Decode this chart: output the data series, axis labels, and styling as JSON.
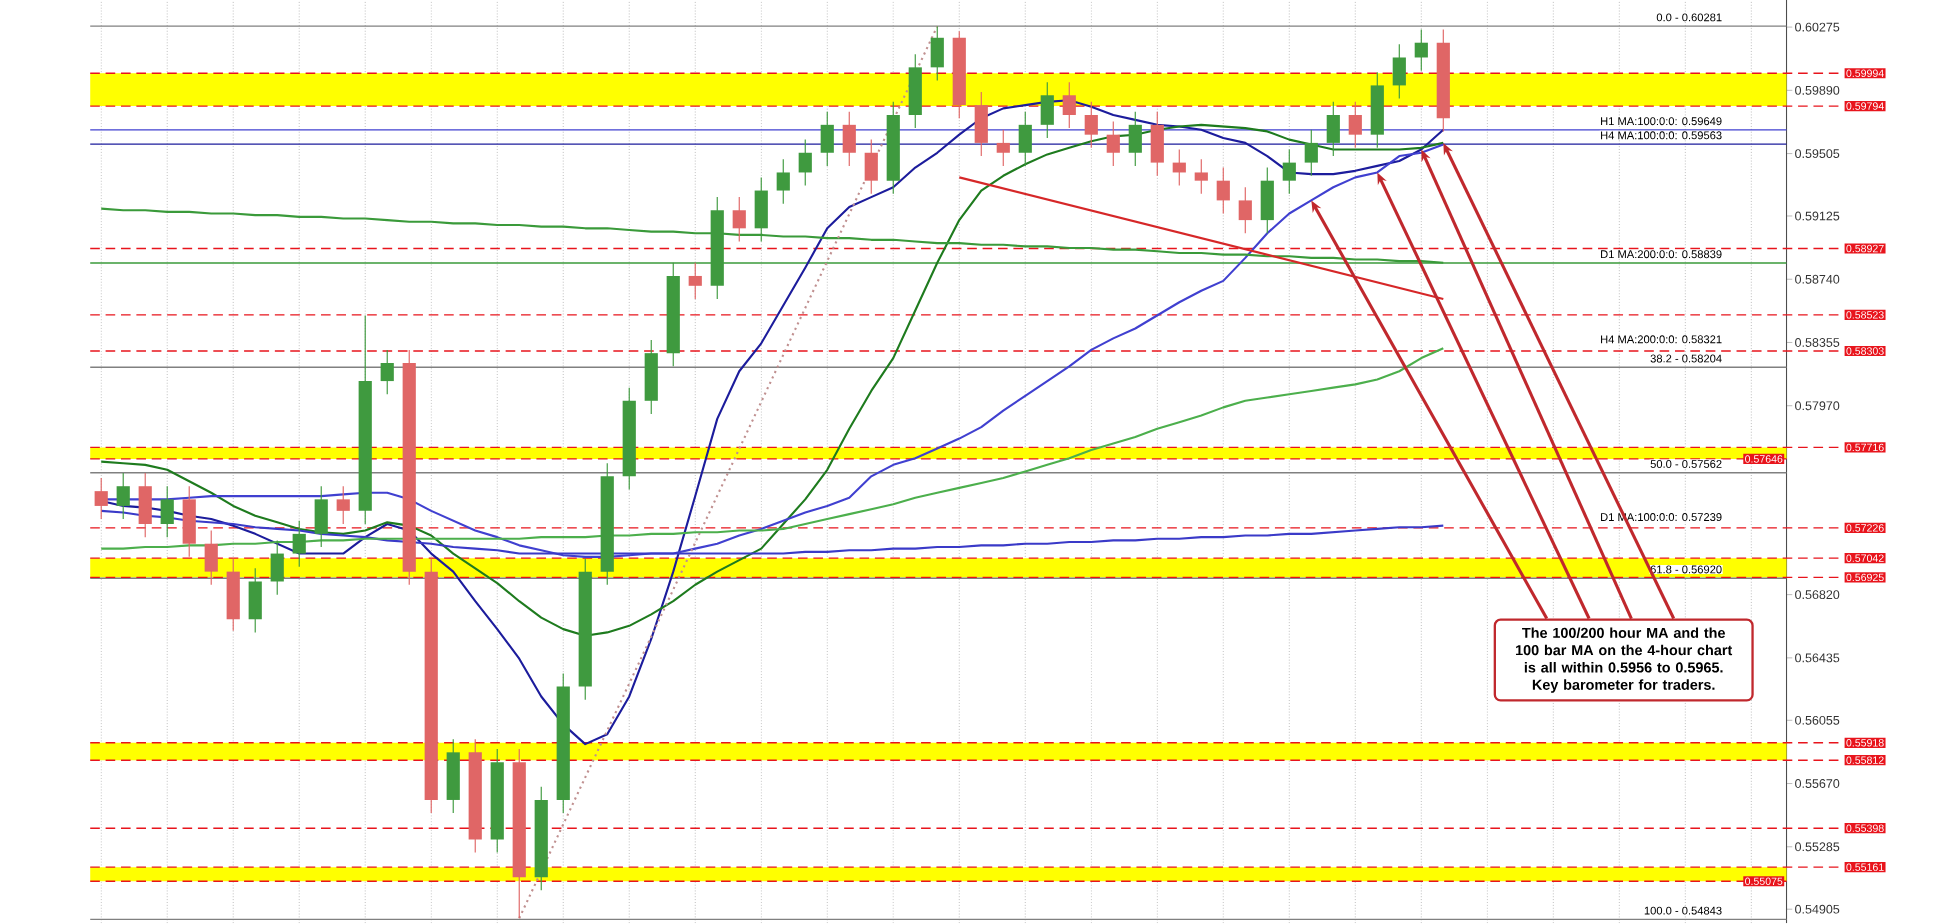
{
  "chart_data": {
    "type": "candlestick",
    "categories": [
      null,
      null,
      null,
      null,
      null,
      null,
      null,
      null,
      null,
      null,
      null,
      null,
      null,
      null,
      null,
      null,
      null,
      null,
      null,
      null,
      null,
      null,
      null,
      null,
      null,
      null,
      null,
      null,
      null,
      null,
      null,
      null,
      null,
      null,
      null,
      null,
      null,
      null,
      null,
      null,
      null,
      null,
      null,
      null,
      null,
      null,
      null,
      null,
      null,
      null,
      null,
      null,
      null,
      null,
      null,
      null,
      null,
      null,
      null,
      null,
      null,
      null
    ],
    "ohlc": [
      [
        0.5745,
        0.5753,
        0.5728,
        0.5736
      ],
      [
        0.5736,
        0.5756,
        0.5728,
        0.5748
      ],
      [
        0.5748,
        0.5756,
        0.5717,
        0.5725
      ],
      [
        0.5725,
        0.5748,
        0.5717,
        0.574
      ],
      [
        0.574,
        0.5748,
        0.5705,
        0.5713
      ],
      [
        0.5713,
        0.5721,
        0.5688,
        0.5696
      ],
      [
        0.5696,
        0.5704,
        0.566,
        0.5667
      ],
      [
        0.5667,
        0.5698,
        0.5659,
        0.569
      ],
      [
        0.569,
        0.5715,
        0.5682,
        0.5707
      ],
      [
        0.5707,
        0.5727,
        0.5699,
        0.5719
      ],
      [
        0.5719,
        0.5748,
        0.5711,
        0.574
      ],
      [
        0.574,
        0.5748,
        0.5725,
        0.5733
      ],
      [
        0.5733,
        0.5852,
        0.5725,
        0.5812
      ],
      [
        0.5812,
        0.5831,
        0.5804,
        0.5823
      ],
      [
        0.5823,
        0.5831,
        0.5688,
        0.5696
      ],
      [
        0.5696,
        0.5704,
        0.5549,
        0.5557
      ],
      [
        0.5557,
        0.5594,
        0.5549,
        0.5586
      ],
      [
        0.5586,
        0.5594,
        0.5525,
        0.5533
      ],
      [
        0.5533,
        0.5588,
        0.5525,
        0.558
      ],
      [
        0.558,
        0.5588,
        0.5485,
        0.551
      ],
      [
        0.551,
        0.5565,
        0.5502,
        0.5557
      ],
      [
        0.5557,
        0.5634,
        0.5549,
        0.5626
      ],
      [
        0.5626,
        0.5704,
        0.5618,
        0.5696
      ],
      [
        0.5696,
        0.5762,
        0.5688,
        0.5754
      ],
      [
        0.5754,
        0.5808,
        0.5746,
        0.58
      ],
      [
        0.58,
        0.5837,
        0.5792,
        0.5829
      ],
      [
        0.5829,
        0.5884,
        0.5821,
        0.5876
      ],
      [
        0.5876,
        0.5884,
        0.5862,
        0.587
      ],
      [
        0.587,
        0.5924,
        0.5862,
        0.5916
      ],
      [
        0.5916,
        0.5924,
        0.5897,
        0.5905
      ],
      [
        0.5905,
        0.5936,
        0.5897,
        0.5928
      ],
      [
        0.5928,
        0.5947,
        0.592,
        0.5939
      ],
      [
        0.5939,
        0.5959,
        0.5931,
        0.5951
      ],
      [
        0.5951,
        0.5976,
        0.5943,
        0.5968
      ],
      [
        0.5968,
        0.5976,
        0.5943,
        0.5951
      ],
      [
        0.5951,
        0.5959,
        0.5926,
        0.5934
      ],
      [
        0.5934,
        0.5982,
        0.5926,
        0.5974
      ],
      [
        0.5974,
        0.6011,
        0.5966,
        0.6003
      ],
      [
        0.6003,
        0.6028,
        0.5995,
        0.6021
      ],
      [
        0.6021,
        0.6025,
        0.5972,
        0.598
      ],
      [
        0.598,
        0.5988,
        0.5949,
        0.5957
      ],
      [
        0.5957,
        0.5965,
        0.5943,
        0.5951
      ],
      [
        0.5951,
        0.5976,
        0.5943,
        0.5968
      ],
      [
        0.5968,
        0.5994,
        0.596,
        0.5986
      ],
      [
        0.5986,
        0.5994,
        0.5966,
        0.5974
      ],
      [
        0.5974,
        0.5982,
        0.5954,
        0.5962
      ],
      [
        0.5962,
        0.597,
        0.5943,
        0.5951
      ],
      [
        0.5951,
        0.5976,
        0.5943,
        0.5968
      ],
      [
        0.5968,
        0.5976,
        0.5937,
        0.5945
      ],
      [
        0.5945,
        0.5953,
        0.5931,
        0.5939
      ],
      [
        0.5939,
        0.5947,
        0.5926,
        0.5934
      ],
      [
        0.5934,
        0.5942,
        0.5914,
        0.5922
      ],
      [
        0.5922,
        0.593,
        0.5902,
        0.591
      ],
      [
        0.591,
        0.5942,
        0.5902,
        0.5934
      ],
      [
        0.5934,
        0.5953,
        0.5926,
        0.5945
      ],
      [
        0.5945,
        0.5965,
        0.5937,
        0.5957
      ],
      [
        0.5957,
        0.5982,
        0.5949,
        0.5974
      ],
      [
        0.5974,
        0.5982,
        0.5954,
        0.5962
      ],
      [
        0.5962,
        0.6,
        0.5954,
        0.5992
      ],
      [
        0.5992,
        0.6017,
        0.5984,
        0.6009
      ],
      [
        0.6009,
        0.6026,
        0.6001,
        0.6018
      ],
      [
        0.6018,
        0.6026,
        0.5964,
        0.5972
      ]
    ],
    "colors": [
      "#e06666",
      "#3f9a3f",
      "#e06666",
      "#3f9a3f",
      "#e06666",
      "#e06666",
      "#e06666",
      "#3f9a3f",
      "#3f9a3f",
      "#3f9a3f",
      "#3f9a3f",
      "#e06666",
      "#3f9a3f",
      "#3f9a3f",
      "#e06666",
      "#e06666",
      "#3f9a3f",
      "#e06666",
      "#3f9a3f",
      "#e06666",
      "#3f9a3f",
      "#3f9a3f",
      "#3f9a3f",
      "#3f9a3f",
      "#3f9a3f",
      "#3f9a3f",
      "#3f9a3f",
      "#e06666",
      "#3f9a3f",
      "#e06666",
      "#3f9a3f",
      "#3f9a3f",
      "#3f9a3f",
      "#3f9a3f",
      "#e06666",
      "#e06666",
      "#3f9a3f",
      "#3f9a3f",
      "#3f9a3f",
      "#e06666",
      "#e06666",
      "#e06666",
      "#3f9a3f",
      "#3f9a3f",
      "#e06666",
      "#e06666",
      "#e06666",
      "#3f9a3f",
      "#e06666",
      "#e06666",
      "#e06666",
      "#e06666",
      "#e06666",
      "#3f9a3f",
      "#3f9a3f",
      "#3f9a3f",
      "#3f9a3f",
      "#e06666",
      "#3f9a3f",
      "#3f9a3f",
      "#3f9a3f",
      "#e06666"
    ],
    "series": [
      {
        "type": "line",
        "color": "#1c1c9c",
        "values": [
          0.5739,
          0.5736,
          0.5735,
          0.5733,
          0.573,
          0.5728,
          0.5724,
          0.5719,
          0.5713,
          0.5707,
          0.5707,
          0.5707,
          0.5717,
          0.5725,
          0.5721,
          0.5707,
          0.5696,
          0.5678,
          0.5661,
          0.5643,
          0.562,
          0.5603,
          0.5591,
          0.5597,
          0.562,
          0.5655,
          0.5696,
          0.5742,
          0.5789,
          0.5818,
          0.5835,
          0.5858,
          0.5881,
          0.5905,
          0.5918,
          0.5924,
          0.593,
          0.5942,
          0.5951,
          0.5962,
          0.5972,
          0.5978,
          0.598,
          0.5982,
          0.5983,
          0.5979,
          0.5974,
          0.5971,
          0.5968,
          0.5967,
          0.5965,
          0.596,
          0.5957,
          0.5949,
          0.5939,
          0.5938,
          0.5938,
          0.594,
          0.5943,
          0.5946,
          0.5953,
          0.5965
        ]
      },
      {
        "type": "line",
        "color": "#1e7b1e",
        "values": [
          0.5763,
          0.5762,
          0.5761,
          0.5758,
          0.5751,
          0.5744,
          0.5736,
          0.573,
          0.5726,
          0.5722,
          0.572,
          0.5719,
          0.5721,
          0.5726,
          0.5724,
          0.5718,
          0.5707,
          0.5698,
          0.5689,
          0.5678,
          0.5668,
          0.5661,
          0.5657,
          0.5659,
          0.5663,
          0.567,
          0.5678,
          0.5688,
          0.5696,
          0.5703,
          0.571,
          0.5725,
          0.574,
          0.5758,
          0.5783,
          0.5806,
          0.5826,
          0.5855,
          0.5884,
          0.591,
          0.5928,
          0.5937,
          0.5944,
          0.595,
          0.5954,
          0.5958,
          0.5961,
          0.5962,
          0.5965,
          0.5967,
          0.5968,
          0.5967,
          0.5966,
          0.5964,
          0.5959,
          0.5956,
          0.5953,
          0.5953,
          0.5953,
          0.5953,
          0.5954,
          0.5957
        ]
      },
      {
        "type": "line",
        "color": "#4040d0",
        "values": [
          0.574,
          0.574,
          0.574,
          0.574,
          0.5741,
          0.5742,
          0.5742,
          0.5742,
          0.5742,
          0.5742,
          0.5742,
          0.5743,
          0.5744,
          0.5744,
          0.574,
          0.5733,
          0.5727,
          0.5721,
          0.5717,
          0.5712,
          0.5709,
          0.5706,
          0.5705,
          0.5705,
          0.5706,
          0.5707,
          0.5707,
          0.571,
          0.5713,
          0.5718,
          0.5722,
          0.5727,
          0.5732,
          0.5736,
          0.5741,
          0.5754,
          0.5761,
          0.5765,
          0.5771,
          0.5777,
          0.5784,
          0.5794,
          0.5803,
          0.5812,
          0.5821,
          0.5831,
          0.5838,
          0.5844,
          0.5852,
          0.586,
          0.5867,
          0.5873,
          0.5887,
          0.5902,
          0.5914,
          0.5922,
          0.593,
          0.5936,
          0.5939,
          0.5949,
          0.5951,
          0.5956
        ]
      },
      {
        "type": "line",
        "color": "#3a9a3a",
        "values": [
          0.5917,
          0.5916,
          0.5916,
          0.5915,
          0.5915,
          0.5914,
          0.5914,
          0.5913,
          0.5913,
          0.5912,
          0.5912,
          0.5911,
          0.5911,
          0.591,
          0.5909,
          0.5909,
          0.5908,
          0.5908,
          0.5907,
          0.5907,
          0.5906,
          0.5906,
          0.5905,
          0.5905,
          0.5904,
          0.5903,
          0.5903,
          0.5902,
          0.5902,
          0.5901,
          0.5901,
          0.59,
          0.59,
          0.5899,
          0.5899,
          0.5898,
          0.5898,
          0.5897,
          0.5896,
          0.5896,
          0.5895,
          0.5895,
          0.5894,
          0.5894,
          0.5893,
          0.5893,
          0.5892,
          0.5892,
          0.5891,
          0.589,
          0.589,
          0.5889,
          0.5889,
          0.5888,
          0.5888,
          0.5887,
          0.5887,
          0.5886,
          0.5886,
          0.5885,
          0.5885,
          0.5884
        ]
      },
      {
        "type": "line",
        "color": "#3a3ac8",
        "values": [
          0.5733,
          0.5732,
          0.573,
          0.5729,
          0.5727,
          0.5726,
          0.5725,
          0.5723,
          0.5722,
          0.5721,
          0.5719,
          0.5718,
          0.5717,
          0.5715,
          0.5714,
          0.5713,
          0.5711,
          0.571,
          0.5709,
          0.5707,
          0.5707,
          0.5707,
          0.5707,
          0.5707,
          0.5707,
          0.5707,
          0.5707,
          0.5707,
          0.5707,
          0.5707,
          0.5707,
          0.5707,
          0.5708,
          0.5708,
          0.5709,
          0.5709,
          0.571,
          0.571,
          0.5711,
          0.5711,
          0.5712,
          0.5712,
          0.5713,
          0.5713,
          0.5714,
          0.5714,
          0.5715,
          0.5715,
          0.5716,
          0.5716,
          0.5717,
          0.5717,
          0.5718,
          0.5718,
          0.5719,
          0.5719,
          0.572,
          0.5721,
          0.5722,
          0.5723,
          0.5723,
          0.5724
        ]
      },
      {
        "type": "line",
        "color": "#4caf4c",
        "values": [
          0.571,
          0.571,
          0.5711,
          0.5711,
          0.5712,
          0.5712,
          0.5713,
          0.5713,
          0.5714,
          0.5714,
          0.5715,
          0.5715,
          0.5716,
          0.5716,
          0.5716,
          0.5716,
          0.5716,
          0.5716,
          0.5716,
          0.5716,
          0.5717,
          0.5717,
          0.5717,
          0.5718,
          0.5718,
          0.5719,
          0.5719,
          0.572,
          0.572,
          0.5721,
          0.5721,
          0.5722,
          0.5725,
          0.5728,
          0.5731,
          0.5734,
          0.5737,
          0.5741,
          0.5744,
          0.5747,
          0.575,
          0.5753,
          0.5757,
          0.5761,
          0.5765,
          0.577,
          0.5774,
          0.5778,
          0.5783,
          0.5787,
          0.5791,
          0.5796,
          0.58,
          0.5802,
          0.5804,
          0.5806,
          0.5808,
          0.581,
          0.5813,
          0.5818,
          0.5826,
          0.5832
        ]
      },
      {
        "type": "line",
        "color": "#d62728",
        "values": [
          null,
          null,
          null,
          null,
          null,
          null,
          null,
          null,
          null,
          null,
          null,
          null,
          null,
          null,
          null,
          null,
          null,
          null,
          null,
          null,
          null,
          null,
          null,
          null,
          null,
          null,
          null,
          null,
          null,
          null,
          null,
          null,
          null,
          null,
          null,
          null,
          null,
          null,
          null,
          0.5936,
          null,
          null,
          null,
          null,
          null,
          null,
          null,
          null,
          null,
          null,
          null,
          null,
          null,
          null,
          null,
          null,
          null,
          null,
          null,
          null,
          null,
          0.5862
        ]
      },
      {
        "type": "line",
        "color": "#c09090",
        "line_style": "dotted",
        "values": [
          null,
          null,
          null,
          null,
          null,
          null,
          null,
          null,
          null,
          null,
          null,
          null,
          null,
          null,
          null,
          null,
          null,
          null,
          null,
          0.5485,
          null,
          null,
          null,
          null,
          null,
          null,
          null,
          null,
          null,
          null,
          null,
          null,
          null,
          null,
          null,
          null,
          null,
          null,
          0.6028,
          null,
          null,
          null,
          null,
          null,
          null,
          null,
          null,
          null,
          null,
          null,
          null,
          null,
          null,
          null,
          null,
          null,
          null,
          null,
          null,
          null,
          null,
          null
        ]
      }
    ],
    "ylim": [
      0.5482,
      0.6044
    ],
    "yticks": [
      0.60275,
      {
        "value": 0.5989,
        "label": "0.59890"
      },
      0.59505,
      0.59125,
      {
        "value": 0.5874,
        "label": "0.58740"
      },
      0.58355,
      {
        "value": 0.5797,
        "label": "0.57970"
      },
      {
        "value": 0.5682,
        "label": "0.56820"
      },
      0.56435,
      0.56055,
      {
        "value": 0.5567,
        "label": "0.55670"
      },
      0.55285,
      0.54905
    ],
    "tick_labels": "y",
    "grid": "x",
    "bands": [
      {
        "axis": "y",
        "from": 0.59794,
        "to": 0.59994,
        "color": "#ffff00"
      },
      {
        "axis": "y",
        "from": 0.57646,
        "to": 0.57716,
        "color": "#ffff00"
      },
      {
        "axis": "y",
        "from": 0.56925,
        "to": 0.57042,
        "color": "#ffff00"
      },
      {
        "axis": "y",
        "from": 0.55812,
        "to": 0.55918,
        "color": "#ffff00"
      },
      {
        "axis": "y",
        "from": 0.55075,
        "to": 0.55161,
        "color": "#ffff00"
      }
    ],
    "ref_lines": [
      {
        "axis": "y",
        "value": 0.60281,
        "color": "#808080",
        "line_style": "solid"
      },
      {
        "axis": "y",
        "value": 0.58204,
        "color": "#808080",
        "line_style": "solid"
      },
      {
        "axis": "y",
        "value": 0.57562,
        "color": "#808080",
        "line_style": "solid"
      },
      {
        "axis": "y",
        "value": 0.5692,
        "color": "#808080",
        "line_style": "solid"
      },
      {
        "axis": "y",
        "value": 0.54843,
        "color": "#808080",
        "line_style": "solid"
      },
      {
        "axis": "y",
        "value": 0.59649,
        "color": "#4040d0",
        "line_style": "solid"
      },
      {
        "axis": "y",
        "value": 0.59563,
        "color": "#1c1c9c",
        "line_style": "solid"
      },
      {
        "axis": "y",
        "value": 0.58839,
        "color": "#3a9a3a",
        "line_style": "solid"
      },
      {
        "axis": "y",
        "value": 0.59994,
        "label": "0.59994",
        "color": "#e8141c",
        "line_style": "dashed"
      },
      {
        "axis": "y",
        "value": 0.59794,
        "label": "0.59794",
        "color": "#e8141c",
        "line_style": "dashed"
      },
      {
        "axis": "y",
        "value": 0.58927,
        "label": "0.58927",
        "color": "#e8141c",
        "line_style": "dashed"
      },
      {
        "axis": "y",
        "value": 0.58523,
        "label": "0.58523",
        "color": "#e8141c",
        "line_style": "dashed"
      },
      {
        "axis": "y",
        "value": 0.58303,
        "label": "0.58303",
        "color": "#e8141c",
        "line_style": "dashed"
      },
      {
        "axis": "y",
        "value": 0.57716,
        "label": "0.57716",
        "color": "#e8141c",
        "line_style": "dashed"
      },
      {
        "axis": "y",
        "value": 0.57646,
        "label": "0.57646",
        "color": "#e8141c",
        "line_style": "dashed"
      },
      {
        "axis": "y",
        "value": 0.57226,
        "label": "0.57226",
        "color": "#e8141c",
        "line_style": "dashed"
      },
      {
        "axis": "y",
        "value": 0.57042,
        "label": "0.57042",
        "color": "#e8141c",
        "line_style": "dashed"
      },
      {
        "axis": "y",
        "value": 0.56925,
        "label": "0.56925",
        "color": "#e8141c",
        "line_style": "dashed"
      },
      {
        "axis": "y",
        "value": 0.55918,
        "label": "0.55918",
        "color": "#e8141c",
        "line_style": "dashed"
      },
      {
        "axis": "y",
        "value": 0.55812,
        "label": "0.55812",
        "color": "#e8141c",
        "line_style": "dashed"
      },
      {
        "axis": "y",
        "value": 0.55398,
        "label": "0.55398",
        "color": "#e8141c",
        "line_style": "dashed"
      },
      {
        "axis": "y",
        "value": 0.55161,
        "label": "0.55161",
        "color": "#e8141c",
        "line_style": "dashed"
      },
      {
        "axis": "y",
        "value": 0.55075,
        "label": "0.55075",
        "color": "#e8141c",
        "line_style": "dashed"
      }
    ],
    "annotations": [
      "The 100/200 hour MA and the 100 bar MA on the 4-hour chart is all within 0.5956 to 0.5965. Key barometer for traders.",
      {
        "text": "H1 MA:100:0:0: 0.59649",
        "y": 0.59649
      },
      {
        "text": "H4 MA:100:0:0: 0.59563",
        "y": 0.59563
      },
      {
        "text": "D1 MA:200:0:0: 0.58839",
        "y": 0.58839
      },
      {
        "text": "H4 MA:200:0:0: 0.58321",
        "y": 0.58321
      },
      {
        "text": "D1 MA:100:0:0: 0.57239",
        "y": 0.57239
      },
      {
        "text": "0.0 - 0.60281",
        "y": 0.60281
      },
      {
        "text": "38.2 - 0.58204",
        "y": 0.58204
      },
      {
        "text": "50.0 - 0.57562",
        "y": 0.57562
      },
      {
        "text": "61.8 - 0.56920",
        "y": 0.5692
      },
      {
        "text": "100.0 - 0.54843",
        "y": 0.54843
      }
    ]
  }
}
